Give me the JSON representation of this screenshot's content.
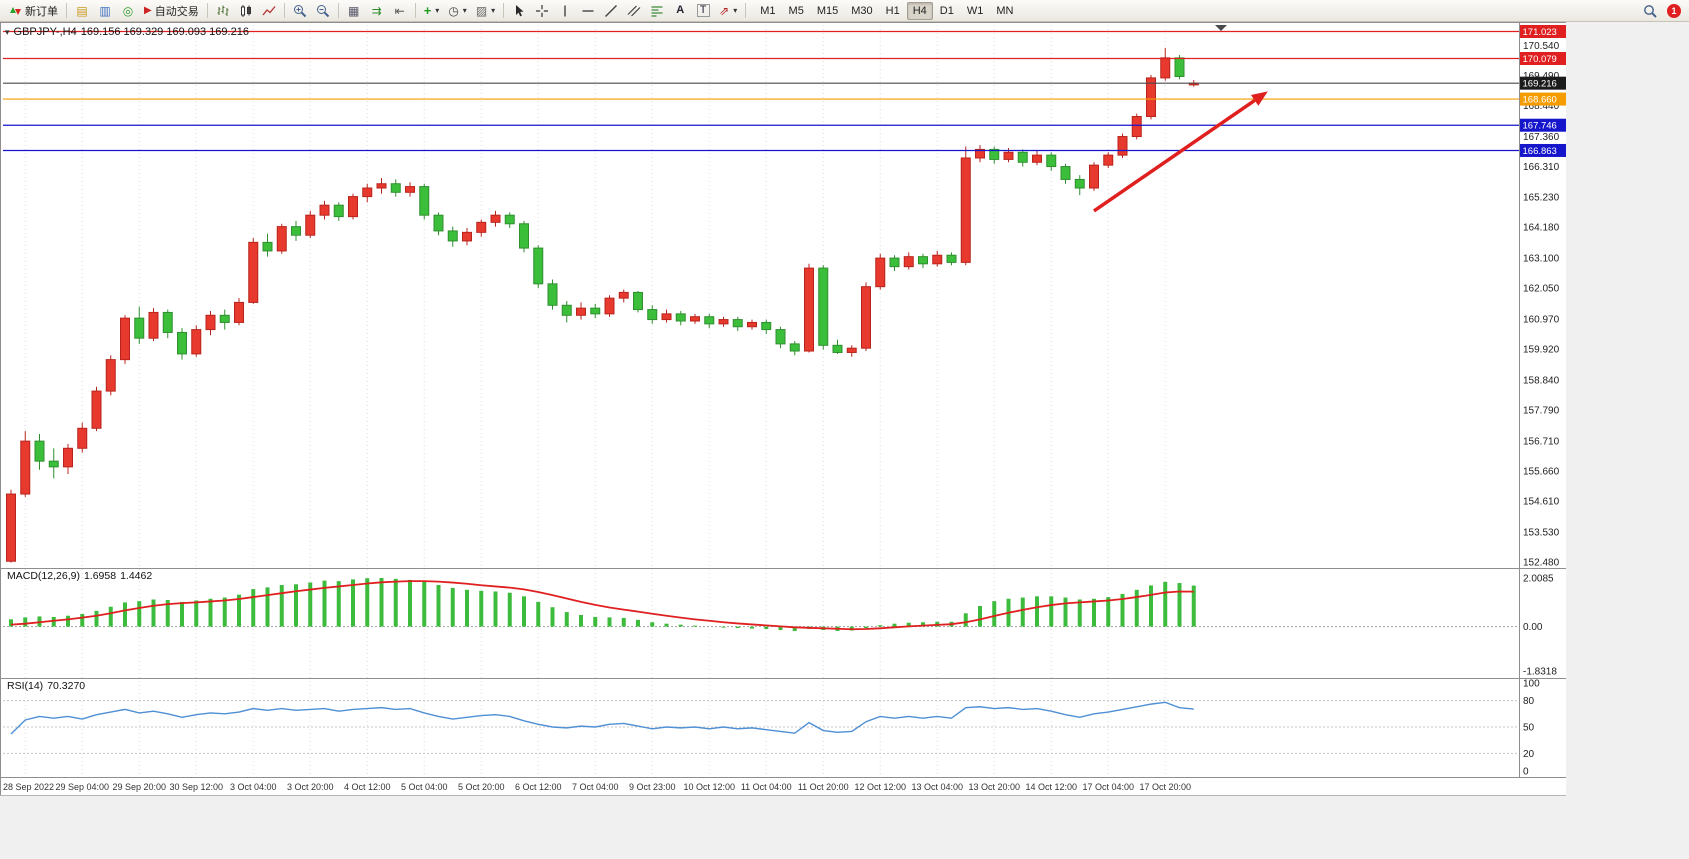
{
  "toolbar": {
    "new_order_label": "新订单",
    "autotrading_label": "自动交易",
    "timeframes": [
      "M1",
      "M5",
      "M15",
      "M30",
      "H1",
      "H4",
      "D1",
      "W1",
      "MN"
    ],
    "active_timeframe": "H4",
    "notification_count": "1"
  },
  "chart": {
    "title": "GBPJPY-,H4",
    "ohlc": "169.156 169.329 169.093 169.216",
    "symbol": "GBPJPY-",
    "timeframe": "H4"
  },
  "indicators": {
    "macd": {
      "label": "MACD(12,26,9)",
      "value_main": "1.6958",
      "value_signal": "1.4462",
      "axis": [
        "2.0085",
        "0.00",
        "-1.8318"
      ]
    },
    "rsi": {
      "label": "RSI(14)",
      "value": "70.3270",
      "axis": [
        "100",
        "80",
        "50",
        "20",
        "0"
      ],
      "levels": [
        80,
        50,
        20
      ]
    }
  },
  "price_axis": {
    "ticks": [
      "170.540",
      "169.490",
      "168.440",
      "167.360",
      "166.310",
      "165.230",
      "164.180",
      "163.100",
      "162.050",
      "160.970",
      "159.920",
      "158.840",
      "157.790",
      "156.710",
      "155.660",
      "154.610",
      "153.530",
      "152.480"
    ]
  },
  "time_axis": {
    "labels": [
      "28 Sep 2022",
      "29 Sep 04:00",
      "29 Sep 20:00",
      "30 Sep 12:00",
      "3 Oct 04:00",
      "3 Oct 20:00",
      "4 Oct 12:00",
      "5 Oct 04:00",
      "5 Oct 20:00",
      "6 Oct 12:00",
      "7 Oct 04:00",
      "9 Oct 23:00",
      "10 Oct 12:00",
      "11 Oct 04:00",
      "11 Oct 20:00",
      "12 Oct 12:00",
      "13 Oct 04:00",
      "13 Oct 20:00",
      "14 Oct 12:00",
      "17 Oct 04:00",
      "17 Oct 20:00"
    ]
  },
  "chart_data": {
    "type": "candlestick",
    "symbol": "GBPJPY-",
    "timeframe": "H4",
    "title": "GBPJPY-,H4 169.156 169.329 169.093 169.216",
    "price_range": [
      152.3,
      171.25
    ],
    "bull_color": "#e8392e",
    "bull_border": "#b8241c",
    "bear_color": "#3bbf3b",
    "bear_border": "#2f8f2f",
    "candles": [
      [
        152.5,
        155.0,
        152.45,
        154.85
      ],
      [
        154.85,
        157.05,
        154.75,
        156.7
      ],
      [
        156.7,
        156.95,
        155.7,
        156.0
      ],
      [
        156.0,
        156.45,
        155.4,
        155.8
      ],
      [
        155.8,
        156.6,
        155.55,
        156.45
      ],
      [
        156.45,
        157.35,
        156.3,
        157.15
      ],
      [
        157.15,
        158.6,
        157.05,
        158.45
      ],
      [
        158.45,
        159.7,
        158.3,
        159.55
      ],
      [
        159.55,
        161.1,
        159.4,
        161.0
      ],
      [
        161.0,
        161.4,
        160.1,
        160.3
      ],
      [
        160.3,
        161.35,
        160.2,
        161.2
      ],
      [
        161.2,
        161.3,
        160.3,
        160.5
      ],
      [
        160.5,
        160.65,
        159.55,
        159.75
      ],
      [
        159.75,
        160.75,
        159.65,
        160.6
      ],
      [
        160.6,
        161.25,
        160.4,
        161.1
      ],
      [
        161.1,
        161.3,
        160.6,
        160.85
      ],
      [
        160.85,
        161.7,
        160.75,
        161.55
      ],
      [
        161.55,
        163.8,
        161.5,
        163.65
      ],
      [
        163.65,
        163.95,
        163.15,
        163.35
      ],
      [
        163.35,
        164.3,
        163.25,
        164.2
      ],
      [
        164.2,
        164.4,
        163.7,
        163.9
      ],
      [
        163.9,
        164.75,
        163.8,
        164.6
      ],
      [
        164.6,
        165.1,
        164.45,
        164.95
      ],
      [
        164.95,
        165.05,
        164.4,
        164.55
      ],
      [
        164.55,
        165.35,
        164.45,
        165.25
      ],
      [
        165.25,
        165.7,
        165.05,
        165.55
      ],
      [
        165.55,
        165.9,
        165.35,
        165.7
      ],
      [
        165.7,
        165.85,
        165.25,
        165.4
      ],
      [
        165.4,
        165.75,
        165.25,
        165.6
      ],
      [
        165.6,
        165.7,
        164.45,
        164.6
      ],
      [
        164.6,
        164.7,
        163.9,
        164.05
      ],
      [
        164.05,
        164.2,
        163.5,
        163.7
      ],
      [
        163.7,
        164.15,
        163.55,
        164.0
      ],
      [
        164.0,
        164.45,
        163.85,
        164.35
      ],
      [
        164.35,
        164.75,
        164.2,
        164.6
      ],
      [
        164.6,
        164.7,
        164.15,
        164.3
      ],
      [
        164.3,
        164.4,
        163.3,
        163.45
      ],
      [
        163.45,
        163.55,
        162.05,
        162.2
      ],
      [
        162.2,
        162.35,
        161.3,
        161.45
      ],
      [
        161.45,
        161.6,
        160.85,
        161.1
      ],
      [
        161.1,
        161.55,
        160.95,
        161.35
      ],
      [
        161.35,
        161.5,
        161.0,
        161.15
      ],
      [
        161.15,
        161.8,
        161.05,
        161.7
      ],
      [
        161.7,
        162.0,
        161.55,
        161.9
      ],
      [
        161.9,
        161.95,
        161.2,
        161.3
      ],
      [
        161.3,
        161.45,
        160.8,
        160.95
      ],
      [
        160.95,
        161.3,
        160.85,
        161.15
      ],
      [
        161.15,
        161.25,
        160.75,
        160.9
      ],
      [
        160.9,
        161.15,
        160.8,
        161.05
      ],
      [
        161.05,
        161.15,
        160.65,
        160.8
      ],
      [
        160.8,
        161.05,
        160.7,
        160.95
      ],
      [
        160.95,
        161.05,
        160.55,
        160.7
      ],
      [
        160.7,
        160.95,
        160.6,
        160.85
      ],
      [
        160.85,
        160.95,
        160.45,
        160.6
      ],
      [
        160.6,
        160.7,
        159.95,
        160.1
      ],
      [
        160.1,
        160.2,
        159.7,
        159.85
      ],
      [
        159.85,
        162.9,
        159.8,
        162.75
      ],
      [
        162.75,
        162.85,
        159.9,
        160.05
      ],
      [
        160.05,
        160.25,
        159.75,
        159.8
      ],
      [
        159.8,
        160.05,
        159.65,
        159.95
      ],
      [
        159.95,
        162.25,
        159.85,
        162.1
      ],
      [
        162.1,
        163.25,
        162.0,
        163.1
      ],
      [
        163.1,
        163.2,
        162.65,
        162.8
      ],
      [
        162.8,
        163.3,
        162.7,
        163.15
      ],
      [
        163.15,
        163.25,
        162.75,
        162.9
      ],
      [
        162.9,
        163.35,
        162.8,
        163.2
      ],
      [
        163.2,
        163.3,
        162.85,
        162.95
      ],
      [
        162.95,
        167.0,
        162.85,
        166.6
      ],
      [
        166.6,
        167.05,
        166.45,
        166.9
      ],
      [
        166.9,
        167.0,
        166.4,
        166.55
      ],
      [
        166.55,
        166.95,
        166.45,
        166.8
      ],
      [
        166.8,
        166.9,
        166.3,
        166.45
      ],
      [
        166.45,
        166.85,
        166.35,
        166.7
      ],
      [
        166.7,
        166.8,
        166.15,
        166.3
      ],
      [
        166.3,
        166.4,
        165.7,
        165.85
      ],
      [
        165.85,
        166.0,
        165.3,
        165.55
      ],
      [
        165.55,
        166.45,
        165.45,
        166.35
      ],
      [
        166.35,
        166.8,
        166.25,
        166.7
      ],
      [
        166.7,
        167.45,
        166.6,
        167.35
      ],
      [
        167.35,
        168.15,
        167.25,
        168.05
      ],
      [
        168.05,
        169.5,
        167.95,
        169.4
      ],
      [
        169.4,
        170.45,
        169.3,
        170.1
      ],
      [
        170.1,
        170.2,
        169.35,
        169.45
      ],
      [
        169.156,
        169.329,
        169.093,
        169.216
      ]
    ],
    "macd": {
      "range": [
        -1.8318,
        2.0085
      ],
      "histogram_color": "#3cbb3c",
      "signal_color": "#e02020",
      "histogram": [
        0.3,
        0.38,
        0.42,
        0.4,
        0.45,
        0.52,
        0.65,
        0.82,
        1.0,
        1.05,
        1.12,
        1.1,
        1.02,
        1.08,
        1.15,
        1.2,
        1.32,
        1.55,
        1.62,
        1.72,
        1.75,
        1.82,
        1.9,
        1.88,
        1.95,
        2.0,
        2.01,
        1.97,
        1.93,
        1.85,
        1.72,
        1.6,
        1.52,
        1.48,
        1.45,
        1.4,
        1.25,
        1.02,
        0.8,
        0.6,
        0.48,
        0.4,
        0.38,
        0.36,
        0.28,
        0.18,
        0.12,
        0.08,
        0.04,
        0.0,
        -0.04,
        -0.06,
        -0.08,
        -0.1,
        -0.14,
        -0.18,
        -0.1,
        -0.14,
        -0.18,
        -0.16,
        -0.06,
        0.06,
        0.12,
        0.16,
        0.18,
        0.2,
        0.2,
        0.55,
        0.85,
        1.05,
        1.15,
        1.2,
        1.25,
        1.25,
        1.2,
        1.12,
        1.15,
        1.22,
        1.35,
        1.52,
        1.7,
        1.85,
        1.8,
        1.6958
      ],
      "signal": [
        0.08,
        0.12,
        0.18,
        0.24,
        0.3,
        0.37,
        0.45,
        0.55,
        0.67,
        0.77,
        0.86,
        0.93,
        0.97,
        1.0,
        1.04,
        1.08,
        1.14,
        1.22,
        1.3,
        1.38,
        1.46,
        1.53,
        1.6,
        1.66,
        1.72,
        1.78,
        1.83,
        1.86,
        1.88,
        1.88,
        1.86,
        1.82,
        1.77,
        1.71,
        1.66,
        1.61,
        1.54,
        1.43,
        1.3,
        1.16,
        1.02,
        0.9,
        0.79,
        0.7,
        0.62,
        0.53,
        0.45,
        0.37,
        0.3,
        0.24,
        0.18,
        0.13,
        0.09,
        0.05,
        0.01,
        -0.03,
        -0.05,
        -0.07,
        -0.09,
        -0.11,
        -0.1,
        -0.07,
        -0.03,
        0.01,
        0.04,
        0.07,
        0.1,
        0.18,
        0.3,
        0.44,
        0.57,
        0.69,
        0.8,
        0.89,
        0.96,
        1.0,
        1.04,
        1.08,
        1.14,
        1.22,
        1.31,
        1.41,
        1.45,
        1.4462
      ]
    },
    "rsi": {
      "range": [
        0,
        100
      ],
      "line_color": "#4f8fd4",
      "values": [
        42,
        58,
        62,
        60,
        62,
        59,
        64,
        67,
        70,
        66,
        68,
        65,
        61,
        64,
        66,
        65,
        67,
        71,
        69,
        71,
        69,
        70,
        71,
        68,
        70,
        71,
        72,
        70,
        71,
        66,
        62,
        59,
        61,
        63,
        64,
        62,
        57,
        53,
        50,
        49,
        51,
        50,
        53,
        54,
        51,
        48,
        50,
        49,
        50,
        48,
        50,
        48,
        49,
        47,
        45,
        43,
        55,
        46,
        44,
        45,
        56,
        62,
        60,
        62,
        60,
        62,
        60,
        72,
        73,
        71,
        72,
        70,
        71,
        68,
        64,
        61,
        65,
        67,
        70,
        73,
        76,
        78,
        72,
        70.33
      ]
    },
    "level_lines": [
      {
        "name": "resistance-line-upper",
        "label": "171.023",
        "value": 171.023,
        "line_color": "#e02020",
        "badge_color": "#e02020",
        "current": false
      },
      {
        "name": "resistance-line-lower",
        "label": "170.079",
        "value": 170.079,
        "line_color": "#e02020",
        "badge_color": "#e02020",
        "current": false
      },
      {
        "name": "current-price-line",
        "label": "169.216",
        "value": 169.216,
        "line_color": "#4a4a4a",
        "badge_color": "#1c1c1c",
        "current": true
      },
      {
        "name": "orange-level-line",
        "label": "168.660",
        "value": 168.66,
        "line_color": "#f59d00",
        "badge_color": "#f59d00",
        "current": false
      },
      {
        "name": "support-line-upper",
        "label": "167.746",
        "value": 167.746,
        "line_color": "#1515cc",
        "badge_color": "#1515cc",
        "current": false
      },
      {
        "name": "support-line-lower",
        "label": "166.863",
        "value": 166.863,
        "line_color": "#1515cc",
        "badge_color": "#1515cc",
        "current": false
      }
    ],
    "annotation_arrow": {
      "from": {
        "index": 76,
        "price": 164.75
      },
      "to": {
        "index": 88.2,
        "price": 168.93
      },
      "color": "#e01f1f"
    }
  }
}
